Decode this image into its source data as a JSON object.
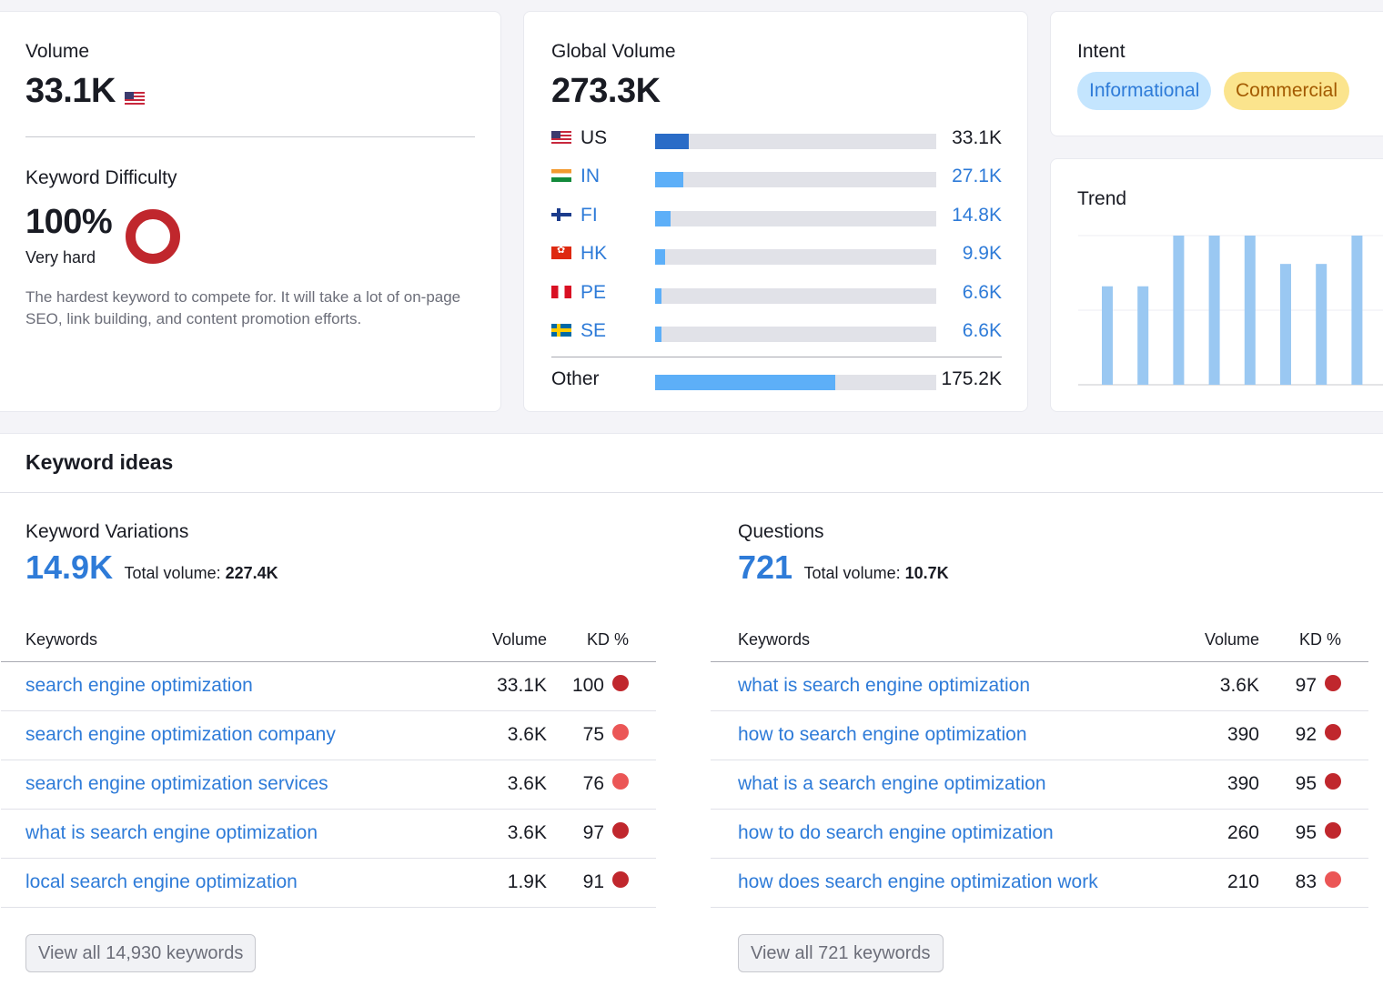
{
  "volume": {
    "label": "Volume",
    "value": "33.1K",
    "flag": "us-flag-icon"
  },
  "difficulty": {
    "label": "Keyword Difficulty",
    "value": "100%",
    "level": "Very hard",
    "percent": 100,
    "color": "#c0272d",
    "description": "The hardest keyword to compete for. It will take a lot of on-page SEO, link building, and content promotion efforts."
  },
  "global": {
    "label": "Global Volume",
    "value": "273.3K",
    "countries": [
      {
        "code": "US",
        "value": "33.1K",
        "share": 0.121,
        "flag": "us",
        "color": "#2a6cc7",
        "link": false
      },
      {
        "code": "IN",
        "value": "27.1K",
        "share": 0.099,
        "flag": "in",
        "color": "#5daff8",
        "link": true
      },
      {
        "code": "FI",
        "value": "14.8K",
        "share": 0.054,
        "flag": "fi",
        "color": "#5daff8",
        "link": true
      },
      {
        "code": "HK",
        "value": "9.9K",
        "share": 0.036,
        "flag": "hk",
        "color": "#5daff8",
        "link": true
      },
      {
        "code": "PE",
        "value": "6.6K",
        "share": 0.024,
        "flag": "pe",
        "color": "#5daff8",
        "link": true
      },
      {
        "code": "SE",
        "value": "6.6K",
        "share": 0.024,
        "flag": "se",
        "color": "#5daff8",
        "link": true
      }
    ],
    "other": {
      "label": "Other",
      "value": "175.2K",
      "share": 0.641
    }
  },
  "intent": {
    "label": "Intent",
    "tags": [
      "Informational",
      "Commercial"
    ]
  },
  "trend": {
    "label": "Trend",
    "chart_data": {
      "type": "bar",
      "values": [
        0.66,
        0.66,
        1.0,
        1.0,
        1.0,
        0.81,
        0.81,
        1.0
      ],
      "grid": true,
      "color": "#9ac8f2"
    }
  },
  "ideas": {
    "title": "Keyword ideas",
    "variations": {
      "label": "Keyword Variations",
      "count": "14.9K",
      "total_label": "Total volume:",
      "total": "227.4K",
      "headers": {
        "keywords": "Keywords",
        "volume": "Volume",
        "kd": "KD %"
      },
      "rows": [
        {
          "keyword": "search engine optimization",
          "volume": "33.1K",
          "kd": "100",
          "color": "#c0272d"
        },
        {
          "keyword": "search engine optimization company",
          "volume": "3.6K",
          "kd": "75",
          "color": "#eb5656"
        },
        {
          "keyword": "search engine optimization services",
          "volume": "3.6K",
          "kd": "76",
          "color": "#eb5656"
        },
        {
          "keyword": "what is search engine optimization",
          "volume": "3.6K",
          "kd": "97",
          "color": "#c0272d"
        },
        {
          "keyword": "local search engine optimization",
          "volume": "1.9K",
          "kd": "91",
          "color": "#c0272d"
        }
      ],
      "button": "View all 14,930 keywords"
    },
    "questions": {
      "label": "Questions",
      "count": "721",
      "total_label": "Total volume:",
      "total": "10.7K",
      "headers": {
        "keywords": "Keywords",
        "volume": "Volume",
        "kd": "KD %"
      },
      "rows": [
        {
          "keyword": "what is search engine optimization",
          "volume": "3.6K",
          "kd": "97",
          "color": "#c0272d"
        },
        {
          "keyword": "how to search engine optimization",
          "volume": "390",
          "kd": "92",
          "color": "#c0272d"
        },
        {
          "keyword": "what is a search engine optimization",
          "volume": "390",
          "kd": "95",
          "color": "#c0272d"
        },
        {
          "keyword": "how to do search engine optimization",
          "volume": "260",
          "kd": "95",
          "color": "#c0272d"
        },
        {
          "keyword": "how does search engine optimization work",
          "volume": "210",
          "kd": "83",
          "color": "#eb5656"
        }
      ],
      "button": "View all 721 keywords"
    }
  }
}
